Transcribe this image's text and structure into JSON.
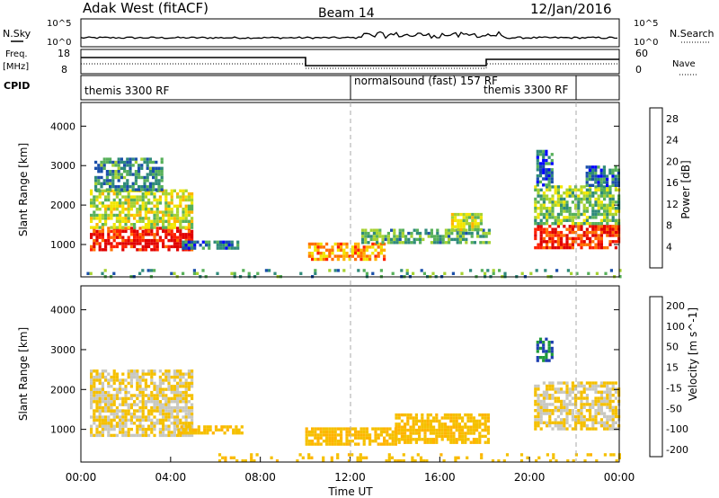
{
  "header": {
    "title": "Adak West (fitACF)",
    "beam": "Beam 14",
    "date": "12/Jan/2016"
  },
  "summary_panels": {
    "nsky_label": "N.Sky",
    "nsky_ticks": [
      "10^5",
      "10^0"
    ],
    "nsearch_label": "N.Search",
    "nsearch_ticks": [
      "10^5",
      "10^0"
    ],
    "freq_label": "Freq.",
    "freq_unit": "[MHz]",
    "freq_ticks": [
      "18",
      "8"
    ],
    "nave_label": "Nave",
    "nave_ticks": [
      "60",
      "0"
    ],
    "cpid_label": "CPID",
    "cpid_segments": [
      {
        "label": "themis 3300 RF",
        "start_hour": 0,
        "end_hour": 12
      },
      {
        "label": "normalsound (fast) 157 RF",
        "start_hour": 12,
        "end_hour": 21.9
      },
      {
        "label": "themis 3300 RF",
        "start_hour": 21.9,
        "end_hour": 24
      }
    ]
  },
  "chart_data": [
    {
      "type": "heatmap",
      "name": "power-panel",
      "xlabel": "",
      "ylabel": "Slant Range [km]",
      "xlim": [
        0,
        24
      ],
      "ylim": [
        180,
        4600
      ],
      "yticks": [
        "1000",
        "2000",
        "3000",
        "4000"
      ],
      "colorbar": {
        "label": "Power [dB]",
        "ticks": [
          "4",
          "8",
          "12",
          "16",
          "20",
          "24",
          "28"
        ],
        "range": [
          0,
          30
        ],
        "colors": [
          "#0000ff",
          "#1a4faa",
          "#2f8a7a",
          "#57b05a",
          "#a6d232",
          "#f2e600",
          "#ffb400",
          "#ff7000",
          "#ff2000",
          "#e00000"
        ]
      },
      "regions": [
        {
          "t0": 0.4,
          "t1": 5.0,
          "r0": 850,
          "r1": 1450,
          "level": 27
        },
        {
          "t0": 0.4,
          "t1": 5.0,
          "r0": 1450,
          "r1": 2400,
          "level": 15
        },
        {
          "t0": 0.6,
          "t1": 3.6,
          "r0": 2400,
          "r1": 3200,
          "level": 8
        },
        {
          "t0": 4.5,
          "t1": 7.0,
          "r0": 900,
          "r1": 1100,
          "level": 6
        },
        {
          "t0": 10.0,
          "t1": 13.5,
          "r0": 650,
          "r1": 1050,
          "level": 20
        },
        {
          "t0": 12.5,
          "t1": 18.2,
          "r0": 1050,
          "r1": 1400,
          "level": 10
        },
        {
          "t0": 16.5,
          "t1": 17.8,
          "r0": 1400,
          "r1": 1800,
          "level": 14
        },
        {
          "t0": 20.2,
          "t1": 24.0,
          "r0": 950,
          "r1": 1500,
          "level": 26
        },
        {
          "t0": 20.2,
          "t1": 24.0,
          "r0": 1500,
          "r1": 2500,
          "level": 12
        },
        {
          "t0": 20.3,
          "t1": 21.0,
          "r0": 2500,
          "r1": 3400,
          "level": 6
        },
        {
          "t0": 22.5,
          "t1": 24.0,
          "r0": 2500,
          "r1": 3000,
          "level": 6
        },
        {
          "t0": 0.0,
          "t1": 24.0,
          "r0": 200,
          "r1": 380,
          "level": 9
        }
      ]
    },
    {
      "type": "heatmap",
      "name": "velocity-panel",
      "xlabel": "Time UT",
      "ylabel": "Slant Range [km]",
      "xlim": [
        0,
        24
      ],
      "ylim": [
        180,
        4600
      ],
      "xticks": [
        "00:00",
        "04:00",
        "08:00",
        "12:00",
        "16:00",
        "20:00",
        "00:00"
      ],
      "yticks": [
        "1000",
        "2000",
        "3000",
        "4000"
      ],
      "colorbar": {
        "label": "Velocity [m s^-1]",
        "ticks": [
          "200",
          "100",
          "50",
          "15",
          "-15",
          "-50",
          "-100",
          "-200"
        ],
        "range": [
          -250,
          250
        ],
        "colors": [
          "#e00000",
          "#ff4000",
          "#ff8a00",
          "#ffb400",
          "#f5c000",
          "#c8c8c0",
          "#5cc040",
          "#1f9a3a",
          "#1e3fb0",
          "#0000e0"
        ]
      },
      "regions": [
        {
          "t0": 0.4,
          "t1": 5.0,
          "r0": 850,
          "r1": 1500,
          "level": 0
        },
        {
          "t0": 0.4,
          "t1": 4.9,
          "r0": 1500,
          "r1": 2500,
          "level": 0
        },
        {
          "t0": 4.3,
          "t1": 7.2,
          "r0": 900,
          "r1": 1100,
          "level": -40
        },
        {
          "t0": 10.0,
          "t1": 14.0,
          "r0": 650,
          "r1": 1050,
          "level": -40
        },
        {
          "t0": 14.0,
          "t1": 18.2,
          "r0": 700,
          "r1": 1400,
          "level": -40
        },
        {
          "t0": 20.2,
          "t1": 24.0,
          "r0": 1000,
          "r1": 2200,
          "level": 0
        },
        {
          "t0": 20.3,
          "t1": 21.0,
          "r0": 2700,
          "r1": 3300,
          "level": 150
        },
        {
          "t0": 6.0,
          "t1": 24.0,
          "r0": 200,
          "r1": 400,
          "level": -30
        }
      ]
    }
  ]
}
